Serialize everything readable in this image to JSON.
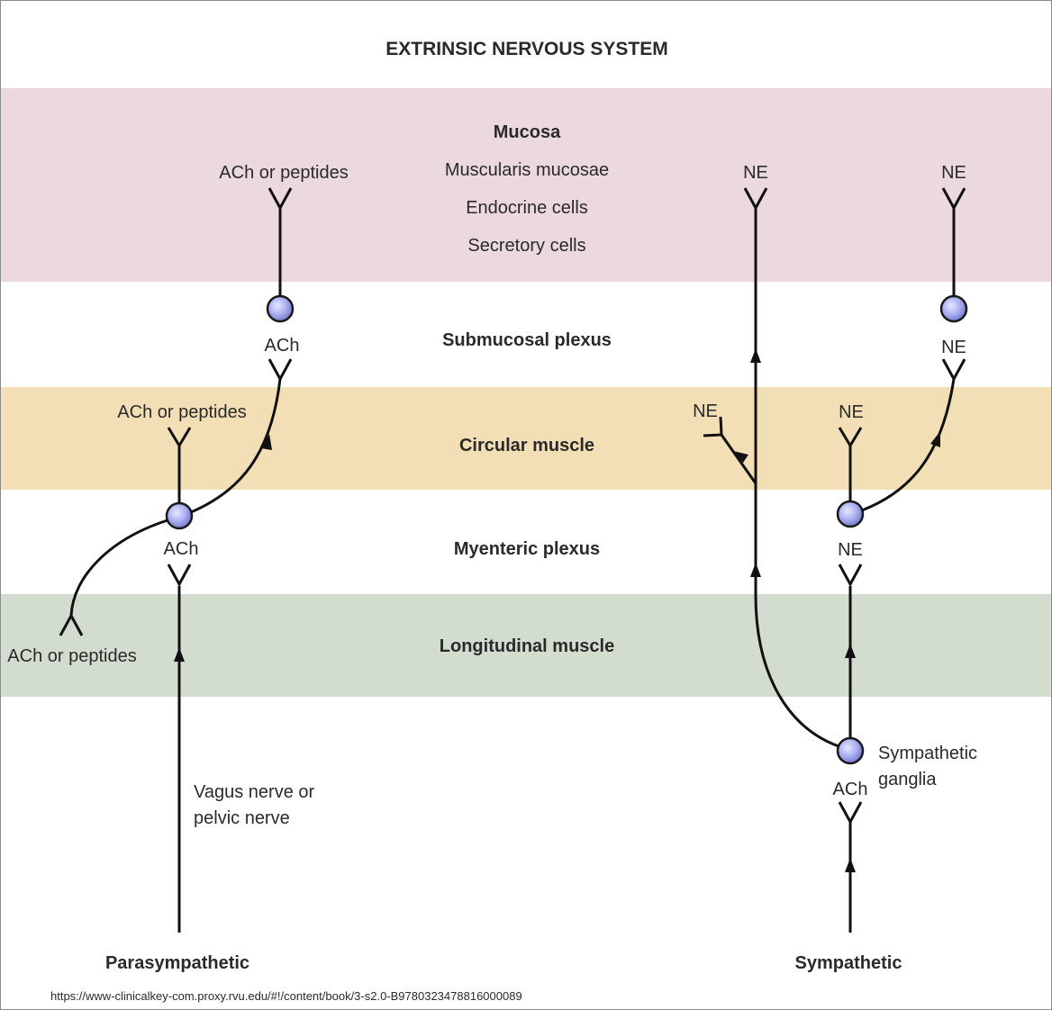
{
  "title": "EXTRINSIC NERVOUS SYSTEM",
  "layers": {
    "mucosa": {
      "name": "Mucosa",
      "items": [
        "Muscularis mucosae",
        "Endocrine cells",
        "Secretory cells"
      ],
      "color": "#ebd8e1"
    },
    "submucosal_plexus": {
      "name": "Submucosal plexus",
      "color": "#ffffff"
    },
    "circular_muscle": {
      "name": "Circular muscle",
      "color": "#f3dfb5"
    },
    "myenteric_plexus": {
      "name": "Myenteric plexus",
      "color": "#ffffff"
    },
    "longitudinal_muscle": {
      "name": "Longitudinal muscle",
      "color": "#d3ddcf"
    }
  },
  "parasympathetic": {
    "label": "Parasympathetic",
    "nerve_label_line1": "Vagus nerve or",
    "nerve_label_line2": "pelvic nerve",
    "myenteric_input": "ACh",
    "circular_output": "ACh or peptides",
    "longitudinal_output": "ACh or peptides",
    "submucosal_input": "ACh",
    "mucosa_output": "ACh or peptides"
  },
  "sympathetic": {
    "label": "Sympathetic",
    "ganglia_label_line1": "Sympathetic",
    "ganglia_label_line2": "ganglia",
    "ganglia_input": "ACh",
    "branch_circular": "NE",
    "mucosa_direct": "NE",
    "myenteric_input": "NE",
    "circular_output": "NE",
    "submucosal_input": "NE",
    "mucosa_output": "NE"
  },
  "source_url": "https://www-clinicalkey-com.proxy.rvu.edu/#!/content/book/3-s2.0-B9780323478816000089",
  "colors": {
    "neuron_fill": "#a9aef0",
    "line": "#111111"
  }
}
